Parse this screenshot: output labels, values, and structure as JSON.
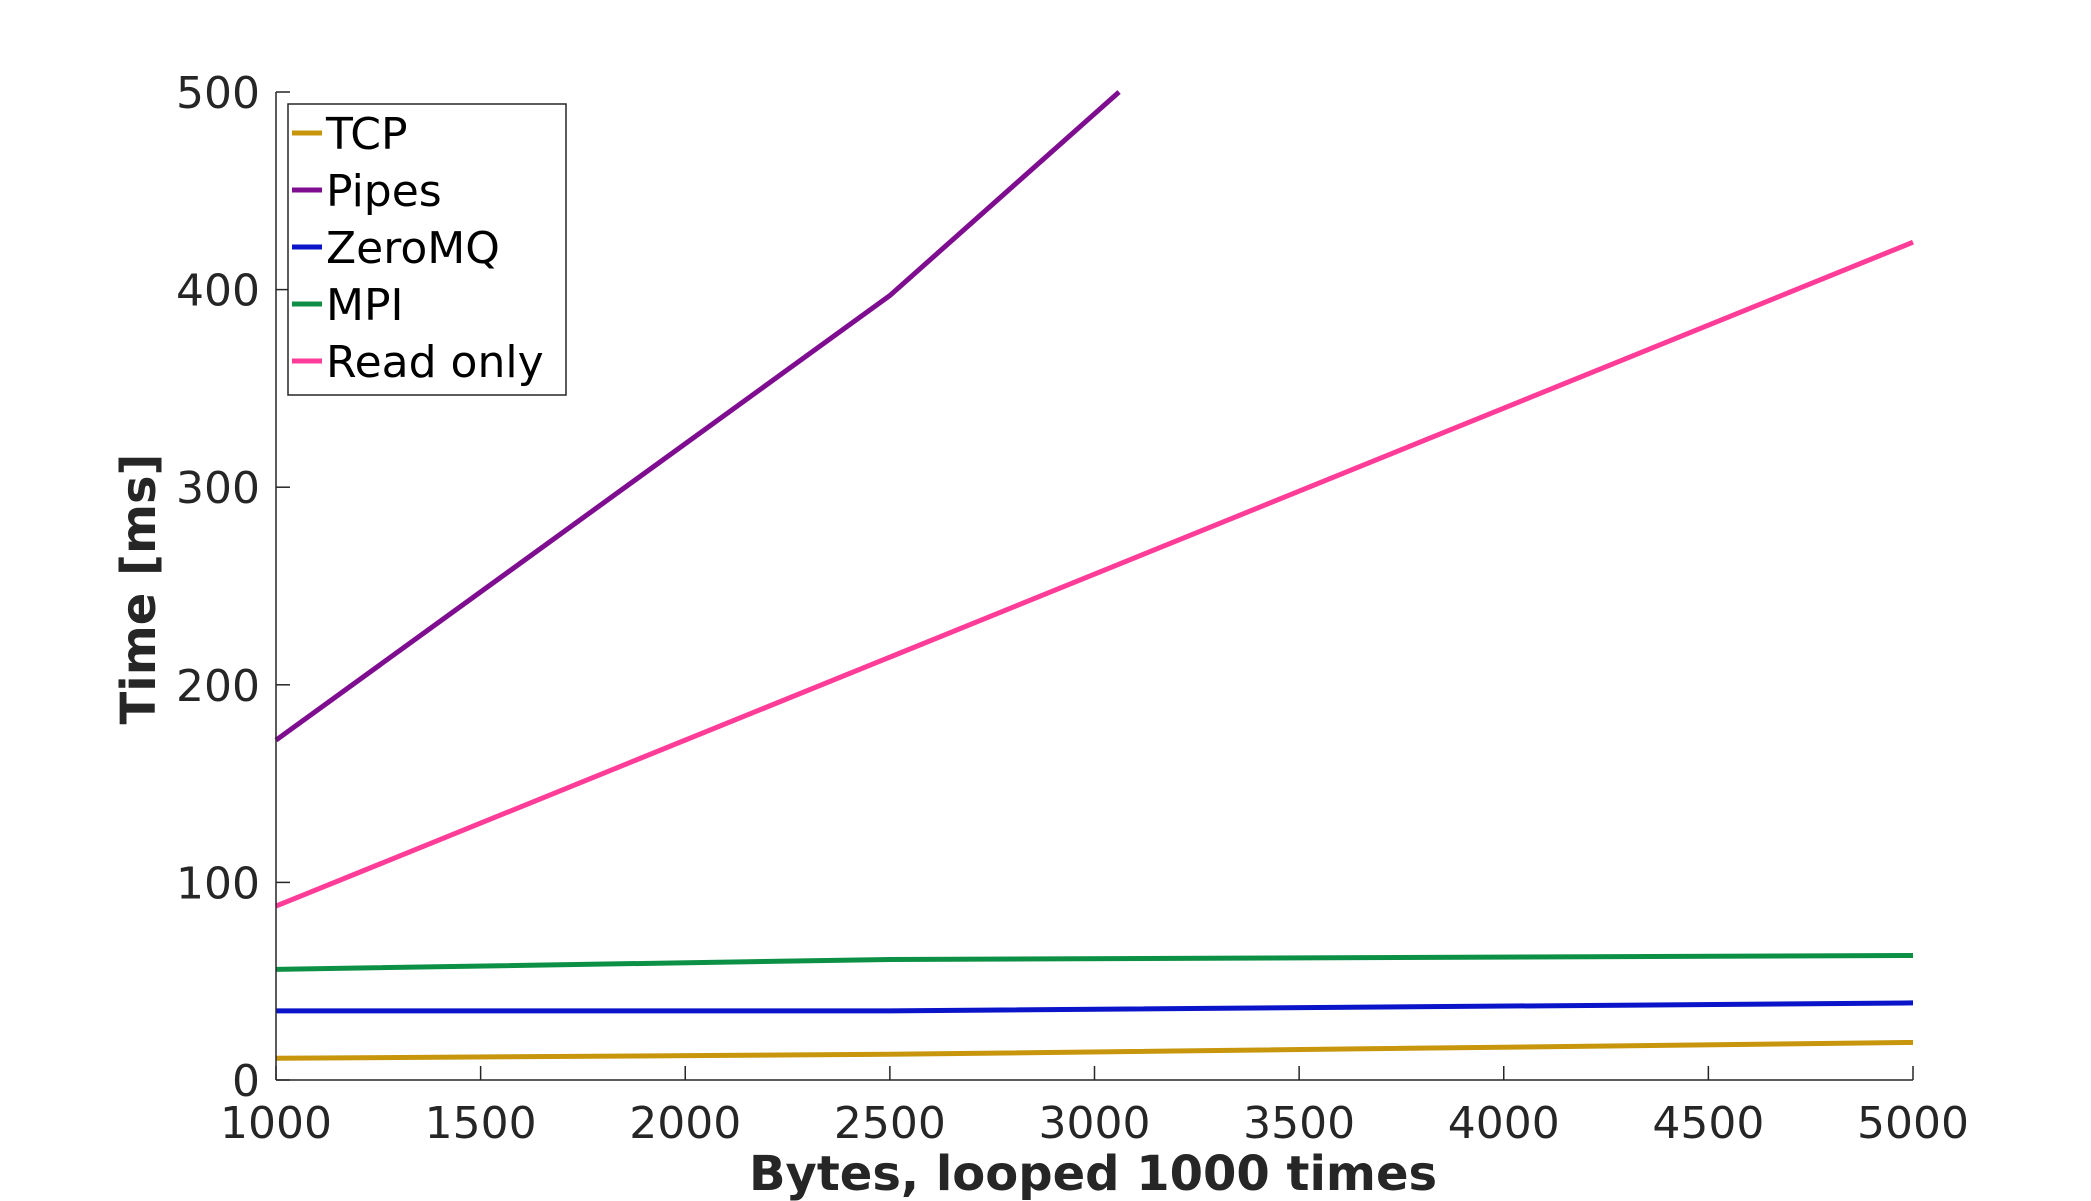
{
  "chart_data": {
    "type": "line",
    "title": "",
    "xlabel": "Bytes, looped 1000 times",
    "ylabel": "Time [ms]",
    "xlim": [
      1000,
      5000
    ],
    "ylim": [
      0,
      500
    ],
    "xticks": [
      1000,
      1500,
      2000,
      2500,
      3000,
      3500,
      4000,
      4500,
      5000
    ],
    "yticks": [
      0,
      100,
      200,
      300,
      400,
      500
    ],
    "grid": false,
    "legend_position": "top-left",
    "series": [
      {
        "name": "TCP",
        "color": "#c8960c",
        "points": [
          [
            1000,
            11
          ],
          [
            2500,
            13
          ],
          [
            5000,
            19
          ]
        ]
      },
      {
        "name": "Pipes",
        "color": "#7e0e8f",
        "points": [
          [
            1000,
            172
          ],
          [
            2500,
            397
          ],
          [
            3060,
            500
          ]
        ]
      },
      {
        "name": "ZeroMQ",
        "color": "#0a14c8",
        "points": [
          [
            1000,
            35
          ],
          [
            2500,
            35
          ],
          [
            5000,
            39
          ]
        ]
      },
      {
        "name": "MPI",
        "color": "#0c9045",
        "points": [
          [
            1000,
            56
          ],
          [
            2500,
            61
          ],
          [
            5000,
            63
          ]
        ]
      },
      {
        "name": "Read only",
        "color": "#ff3d98",
        "points": [
          [
            1000,
            88
          ],
          [
            5000,
            424
          ]
        ]
      }
    ]
  }
}
